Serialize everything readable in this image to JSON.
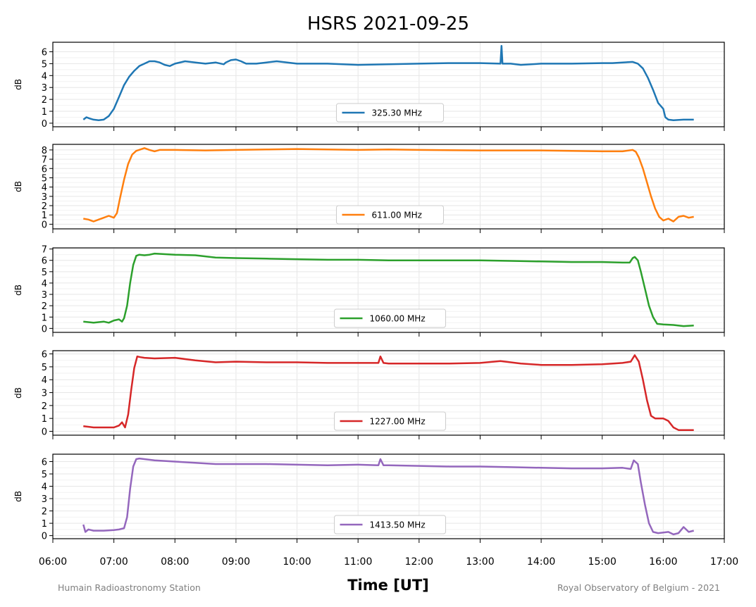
{
  "chart_data": {
    "type": "line",
    "title": "HSRS 2021-09-25",
    "xlabel": "Time [UT]",
    "xlim": [
      "06:00",
      "17:00"
    ],
    "x_ticks": [
      "06:00",
      "07:00",
      "08:00",
      "09:00",
      "10:00",
      "11:00",
      "12:00",
      "13:00",
      "14:00",
      "15:00",
      "16:00",
      "17:00"
    ],
    "grid": true,
    "legend_position": "bottom-center",
    "footer_left": "Humain Radioastronomy Station",
    "footer_right": "Royal Observatory of Belgium - 2021",
    "panels": [
      {
        "ylabel": "dB",
        "ylim": [
          -0.3,
          6.8
        ],
        "yticks": [
          0,
          1,
          2,
          3,
          4,
          5,
          6
        ],
        "series": [
          {
            "name": "325.30 MHz",
            "color": "#1f77b4",
            "x": [
              "06:30",
              "06:33",
              "06:36",
              "06:40",
              "06:45",
              "06:50",
              "06:55",
              "07:00",
              "07:05",
              "07:10",
              "07:15",
              "07:20",
              "07:25",
              "07:30",
              "07:35",
              "07:40",
              "07:45",
              "07:50",
              "07:55",
              "08:00",
              "08:10",
              "08:20",
              "08:30",
              "08:40",
              "08:48",
              "08:50",
              "08:55",
              "09:00",
              "09:05",
              "09:10",
              "09:20",
              "09:30",
              "09:40",
              "10:00",
              "10:30",
              "11:00",
              "11:30",
              "12:00",
              "12:30",
              "13:00",
              "13:20",
              "13:21",
              "13:22",
              "13:23",
              "13:30",
              "13:40",
              "14:00",
              "14:30",
              "15:00",
              "15:10",
              "15:20",
              "15:30",
              "15:35",
              "15:40",
              "15:45",
              "15:50",
              "15:55",
              "16:00",
              "16:02",
              "16:05",
              "16:10",
              "16:20",
              "16:30"
            ],
            "y": [
              0.3,
              0.5,
              0.4,
              0.3,
              0.25,
              0.3,
              0.6,
              1.2,
              2.2,
              3.2,
              3.9,
              4.4,
              4.8,
              5.0,
              5.2,
              5.2,
              5.1,
              4.9,
              4.8,
              5.0,
              5.2,
              5.1,
              5.0,
              5.1,
              4.95,
              5.1,
              5.3,
              5.35,
              5.2,
              5.0,
              5.0,
              5.1,
              5.2,
              5.0,
              5.0,
              4.9,
              4.95,
              5.0,
              5.05,
              5.05,
              5.0,
              6.5,
              5.0,
              5.0,
              5.0,
              4.9,
              5.0,
              5.0,
              5.05,
              5.05,
              5.1,
              5.15,
              5.0,
              4.6,
              3.8,
              2.8,
              1.7,
              1.2,
              0.5,
              0.3,
              0.25,
              0.3,
              0.3
            ]
          }
        ]
      },
      {
        "ylabel": "dB",
        "ylim": [
          -0.5,
          8.6
        ],
        "yticks": [
          0,
          1,
          2,
          3,
          4,
          5,
          6,
          7,
          8
        ],
        "series": [
          {
            "name": "611.00 MHz",
            "color": "#ff7f0e",
            "x": [
              "06:30",
              "06:35",
              "06:40",
              "06:45",
              "06:50",
              "06:55",
              "07:00",
              "07:03",
              "07:06",
              "07:10",
              "07:14",
              "07:18",
              "07:22",
              "07:26",
              "07:30",
              "07:35",
              "07:40",
              "07:45",
              "08:00",
              "08:30",
              "09:00",
              "09:30",
              "10:00",
              "10:30",
              "11:00",
              "11:30",
              "12:00",
              "13:00",
              "14:00",
              "14:30",
              "15:00",
              "15:20",
              "15:30",
              "15:33",
              "15:36",
              "15:40",
              "15:44",
              "15:48",
              "15:52",
              "15:56",
              "16:00",
              "16:05",
              "16:10",
              "16:15",
              "16:20",
              "16:25",
              "16:30"
            ],
            "y": [
              0.6,
              0.5,
              0.3,
              0.5,
              0.7,
              0.9,
              0.7,
              1.2,
              2.8,
              4.8,
              6.5,
              7.5,
              7.9,
              8.05,
              8.2,
              8.0,
              7.85,
              8.0,
              8.0,
              7.95,
              8.0,
              8.05,
              8.1,
              8.05,
              8.0,
              8.05,
              8.0,
              7.95,
              7.95,
              7.9,
              7.85,
              7.85,
              8.0,
              7.8,
              7.2,
              6.0,
              4.5,
              3.0,
              1.7,
              0.8,
              0.4,
              0.6,
              0.3,
              0.8,
              0.9,
              0.7,
              0.8
            ]
          }
        ]
      },
      {
        "ylabel": "dB",
        "ylim": [
          -0.35,
          7.1
        ],
        "yticks": [
          0,
          1,
          2,
          3,
          4,
          5,
          6,
          7
        ],
        "series": [
          {
            "name": "1060.00 MHz",
            "color": "#2ca02c",
            "x": [
              "06:30",
              "06:40",
              "06:50",
              "06:55",
              "07:00",
              "07:05",
              "07:08",
              "07:10",
              "07:13",
              "07:16",
              "07:19",
              "07:22",
              "07:25",
              "07:30",
              "07:35",
              "07:40",
              "08:00",
              "08:20",
              "08:40",
              "09:00",
              "09:30",
              "10:00",
              "10:30",
              "11:00",
              "11:30",
              "12:00",
              "12:30",
              "13:00",
              "13:30",
              "14:00",
              "14:30",
              "15:00",
              "15:20",
              "15:27",
              "15:30",
              "15:32",
              "15:35",
              "15:38",
              "15:42",
              "15:46",
              "15:50",
              "15:54",
              "16:00",
              "16:10",
              "16:20",
              "16:30"
            ],
            "y": [
              0.6,
              0.5,
              0.6,
              0.5,
              0.7,
              0.8,
              0.6,
              0.9,
              2.0,
              4.0,
              5.6,
              6.4,
              6.5,
              6.45,
              6.5,
              6.6,
              6.5,
              6.45,
              6.25,
              6.2,
              6.15,
              6.1,
              6.05,
              6.05,
              6.0,
              6.0,
              6.0,
              6.0,
              5.95,
              5.9,
              5.85,
              5.85,
              5.8,
              5.8,
              6.2,
              6.3,
              6.0,
              5.0,
              3.5,
              2.0,
              1.0,
              0.4,
              0.35,
              0.3,
              0.2,
              0.25
            ]
          }
        ]
      },
      {
        "ylabel": "dB",
        "ylim": [
          -0.3,
          6.25
        ],
        "yticks": [
          0,
          1,
          2,
          3,
          4,
          5,
          6
        ],
        "series": [
          {
            "name": "1227.00 MHz",
            "color": "#d62728",
            "x": [
              "06:30",
              "06:40",
              "06:50",
              "07:00",
              "07:05",
              "07:08",
              "07:11",
              "07:14",
              "07:17",
              "07:20",
              "07:23",
              "07:26",
              "07:30",
              "07:40",
              "08:00",
              "08:20",
              "08:40",
              "09:00",
              "09:30",
              "10:00",
              "10:30",
              "11:00",
              "11:20",
              "11:22",
              "11:25",
              "11:30",
              "12:00",
              "12:30",
              "13:00",
              "13:20",
              "13:40",
              "14:00",
              "14:30",
              "15:00",
              "15:20",
              "15:28",
              "15:32",
              "15:36",
              "15:40",
              "15:44",
              "15:48",
              "15:52",
              "16:00",
              "16:05",
              "16:10",
              "16:15",
              "16:30"
            ],
            "y": [
              0.4,
              0.3,
              0.3,
              0.3,
              0.45,
              0.7,
              0.3,
              1.3,
              3.2,
              4.9,
              5.8,
              5.75,
              5.7,
              5.65,
              5.7,
              5.5,
              5.35,
              5.4,
              5.35,
              5.35,
              5.3,
              5.3,
              5.3,
              5.8,
              5.3,
              5.25,
              5.25,
              5.25,
              5.3,
              5.45,
              5.25,
              5.15,
              5.15,
              5.2,
              5.3,
              5.4,
              5.9,
              5.4,
              4.0,
              2.4,
              1.2,
              1.0,
              1.0,
              0.8,
              0.3,
              0.1,
              0.1
            ]
          }
        ]
      },
      {
        "ylabel": "dB",
        "ylim": [
          -0.25,
          6.6
        ],
        "yticks": [
          0,
          1,
          2,
          3,
          4,
          5,
          6
        ],
        "series": [
          {
            "name": "1413.50 MHz",
            "color": "#9467bd",
            "x": [
              "06:30",
              "06:32",
              "06:35",
              "06:40",
              "06:50",
              "07:00",
              "07:05",
              "07:10",
              "07:13",
              "07:16",
              "07:19",
              "07:22",
              "07:25",
              "07:30",
              "07:40",
              "08:00",
              "08:20",
              "08:40",
              "09:00",
              "09:30",
              "10:00",
              "10:30",
              "11:00",
              "11:20",
              "11:22",
              "11:25",
              "11:30",
              "12:00",
              "12:30",
              "13:00",
              "13:30",
              "14:00",
              "14:30",
              "15:00",
              "15:20",
              "15:28",
              "15:31",
              "15:35",
              "15:38",
              "15:42",
              "15:46",
              "15:50",
              "15:55",
              "16:00",
              "16:05",
              "16:10",
              "16:15",
              "16:20",
              "16:25",
              "16:30"
            ],
            "y": [
              0.9,
              0.3,
              0.5,
              0.4,
              0.4,
              0.45,
              0.5,
              0.6,
              1.5,
              3.8,
              5.6,
              6.2,
              6.25,
              6.2,
              6.1,
              6.0,
              5.9,
              5.8,
              5.8,
              5.8,
              5.75,
              5.7,
              5.75,
              5.7,
              6.2,
              5.7,
              5.7,
              5.65,
              5.6,
              5.6,
              5.55,
              5.5,
              5.45,
              5.45,
              5.5,
              5.4,
              6.1,
              5.8,
              4.3,
              2.5,
              1.0,
              0.3,
              0.2,
              0.25,
              0.3,
              0.1,
              0.2,
              0.7,
              0.3,
              0.4
            ]
          }
        ]
      }
    ]
  }
}
